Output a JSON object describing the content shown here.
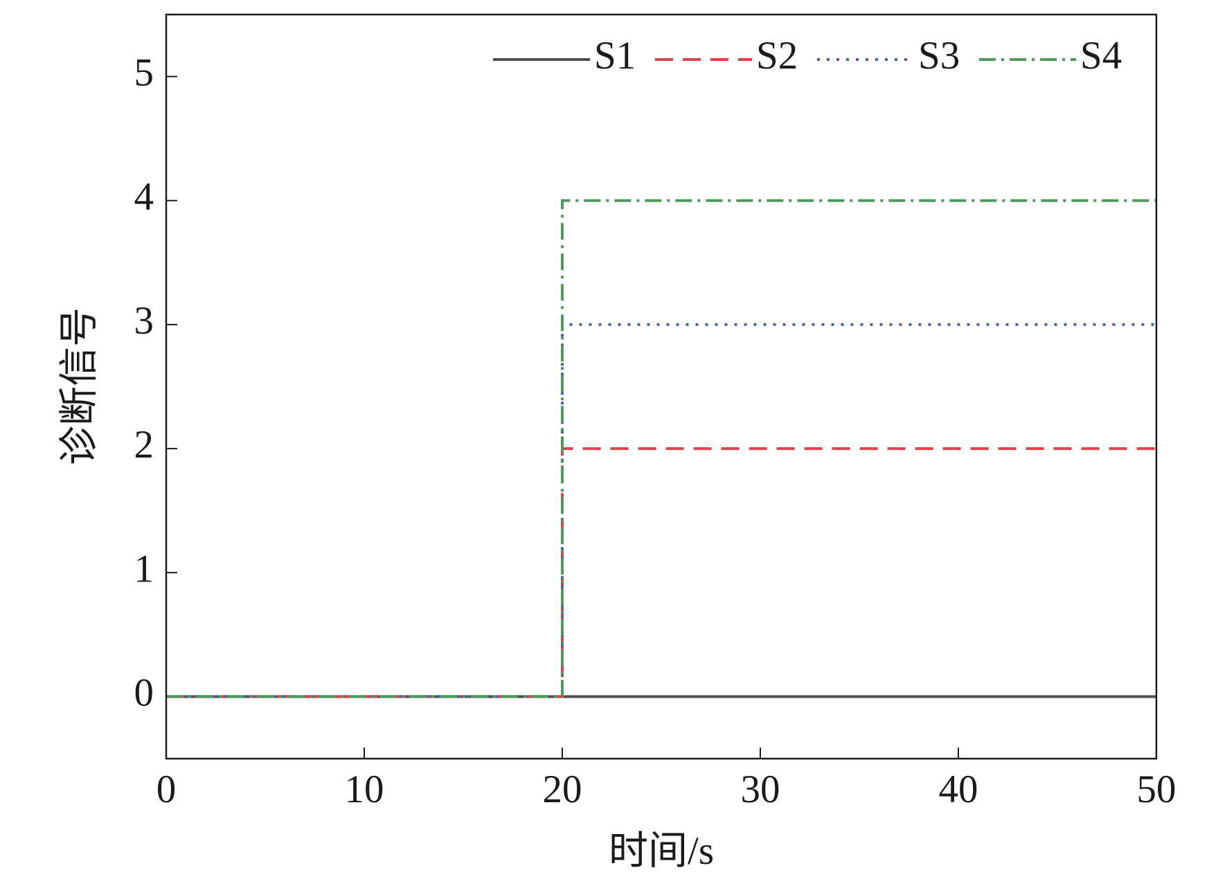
{
  "chart_data": {
    "type": "line",
    "xlabel": "时间/s",
    "ylabel": "诊断信号",
    "x": [
      0,
      20,
      20,
      50
    ],
    "series": [
      {
        "name": "S1",
        "color": "#4d4d4d",
        "linestyle": "solid",
        "values": [
          0,
          0,
          0,
          0
        ]
      },
      {
        "name": "S2",
        "color": "#d9434b",
        "linestyle": "dashed",
        "values": [
          0,
          0,
          2,
          2
        ]
      },
      {
        "name": "S3",
        "color": "#4a63a8",
        "linestyle": "dotted",
        "values": [
          0,
          0,
          3,
          3
        ]
      },
      {
        "name": "S4",
        "color": "#4e9a5b",
        "linestyle": "dashdot",
        "values": [
          0,
          0,
          4,
          4
        ]
      }
    ],
    "xlim": [
      0,
      50
    ],
    "xticks": [
      0,
      10,
      20,
      30,
      40,
      50
    ],
    "ylim": [
      -0.5,
      5.5
    ],
    "yticks": [
      0,
      1,
      2,
      3,
      4,
      5
    ],
    "grid": false,
    "legend": "upper right"
  }
}
